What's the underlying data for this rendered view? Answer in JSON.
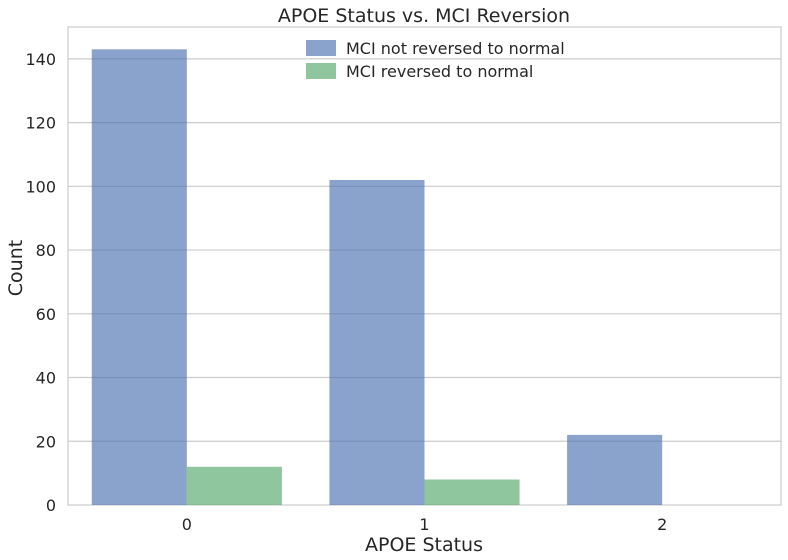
{
  "chart_data": {
    "type": "bar",
    "title": "APOE Status vs. MCI Reversion",
    "xlabel": "APOE Status",
    "ylabel": "Count",
    "categories": [
      "0",
      "1",
      "2"
    ],
    "series": [
      {
        "name": "MCI not reversed to normal",
        "values": [
          143,
          102,
          22
        ],
        "color": "#4c72b0"
      },
      {
        "name": "MCI reversed to normal",
        "values": [
          12,
          8,
          0
        ],
        "color": "#55a868"
      }
    ],
    "ylim": [
      0,
      150
    ],
    "yticks": [
      0,
      20,
      40,
      60,
      80,
      100,
      120,
      140
    ],
    "grid": true,
    "legend_position": "top-center"
  }
}
